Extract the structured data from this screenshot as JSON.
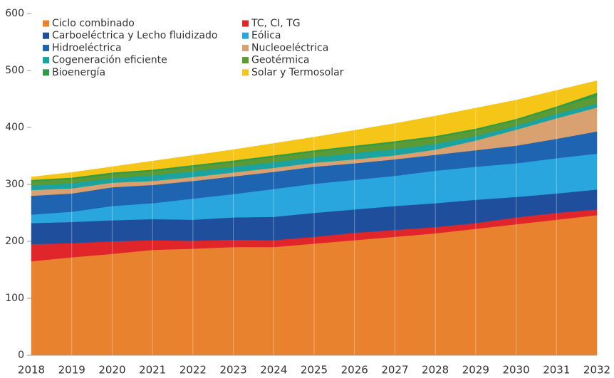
{
  "chart_data": {
    "type": "stacked_area",
    "categories": [
      "2018",
      "2019",
      "2020",
      "2021",
      "2022",
      "2023",
      "2024",
      "2025",
      "2026",
      "2027",
      "2028",
      "2029",
      "2030",
      "2031",
      "2032"
    ],
    "series": [
      {
        "name": "Ciclo combinado",
        "color": "#e8822e",
        "values": [
          165,
          172,
          178,
          185,
          187,
          190,
          190,
          196,
          202,
          208,
          214,
          222,
          230,
          238,
          246
        ]
      },
      {
        "name": "TC, CI, TG",
        "color": "#e0262a",
        "values": [
          30,
          25,
          22,
          17,
          14,
          13,
          12,
          12,
          13,
          12,
          11,
          10,
          12,
          12,
          10
        ]
      },
      {
        "name": "Carboeléctrica y Lecho fluidizado",
        "color": "#1f4f9c",
        "values": [
          37,
          37,
          37,
          37,
          37,
          39,
          41,
          42,
          41,
          42,
          42,
          41,
          36,
          34,
          35
        ]
      },
      {
        "name": "Eólica",
        "color": "#29a6de",
        "values": [
          15,
          18,
          25,
          28,
          37,
          41,
          49,
          51,
          52,
          53,
          57,
          58,
          59,
          62,
          63
        ]
      },
      {
        "name": "Hidroeléctrica",
        "color": "#1e64b0",
        "values": [
          33,
          32,
          33,
          32,
          31,
          31,
          30,
          30,
          29,
          29,
          28,
          29,
          31,
          34,
          39
        ]
      },
      {
        "name": "Nucleoeléctrica",
        "color": "#d9a070",
        "values": [
          10,
          9,
          8,
          7,
          7,
          7,
          7,
          7,
          7,
          7,
          9,
          17,
          28,
          36,
          42
        ]
      },
      {
        "name": "Cogeneración eficiente",
        "color": "#1aa3a0",
        "values": [
          8,
          9,
          8,
          10,
          10,
          10,
          10,
          10,
          11,
          11,
          10,
          8,
          7,
          8,
          7
        ]
      },
      {
        "name": "Geotérmica",
        "color": "#5b9a35",
        "values": [
          7,
          7,
          7,
          7,
          8,
          8,
          9,
          9,
          10,
          11,
          11,
          10,
          9,
          10,
          13
        ]
      },
      {
        "name": "Bioenergía",
        "color": "#2f9d46",
        "values": [
          3,
          3,
          3,
          3,
          3,
          3,
          3,
          3,
          3,
          3,
          3,
          3,
          3,
          3,
          6
        ]
      },
      {
        "name": "Solar y Termosolar",
        "color": "#f5c518",
        "values": [
          5,
          9,
          10,
          15,
          17,
          19,
          21,
          23,
          27,
          31,
          35,
          36,
          33,
          28,
          21
        ]
      }
    ],
    "ylim": [
      0,
      600
    ],
    "yticks": [
      0,
      100,
      200,
      300,
      400,
      500,
      600
    ],
    "grid": true,
    "legend": "top-left"
  }
}
